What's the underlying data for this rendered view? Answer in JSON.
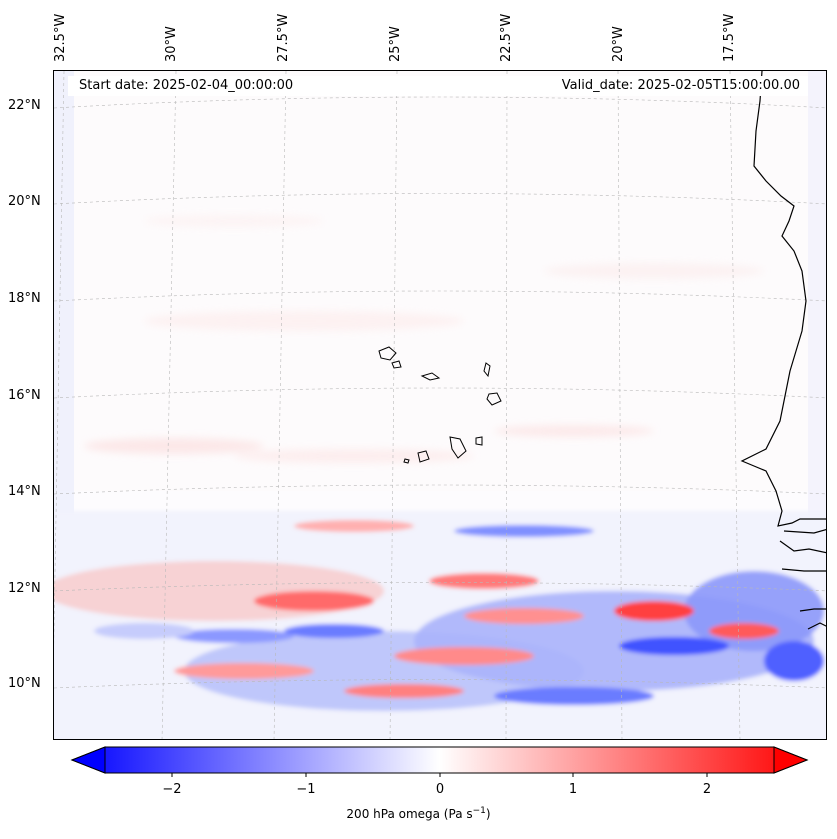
{
  "header": {
    "start_date": "Start date: 2025-02-04_00:00:00",
    "valid_date": "Valid_date: 2025-02-05T15:00:00.00"
  },
  "map": {
    "longitude_labels": [
      "32.5°W",
      "30°W",
      "27.5°W",
      "25°W",
      "22.5°W",
      "20°W",
      "17.5°W"
    ],
    "latitude_labels": [
      "22°N",
      "20°N",
      "18°N",
      "16°N",
      "14°N",
      "12°N",
      "10°N"
    ],
    "field": "200 hPa omega",
    "features": [
      "West African coastline",
      "Cape Verde islands",
      "Senegal / Gambia coast"
    ]
  },
  "colorbar": {
    "label": "200 hPa omega (Pa s",
    "label_exponent": "−1",
    "label_close": ")",
    "ticks": [
      "−2",
      "−1",
      "0",
      "1",
      "2"
    ],
    "colors": {
      "negative": "#0000ff",
      "zero": "#ffffff",
      "positive": "#ff0000"
    },
    "range": [
      -2.7,
      2.7
    ]
  }
}
